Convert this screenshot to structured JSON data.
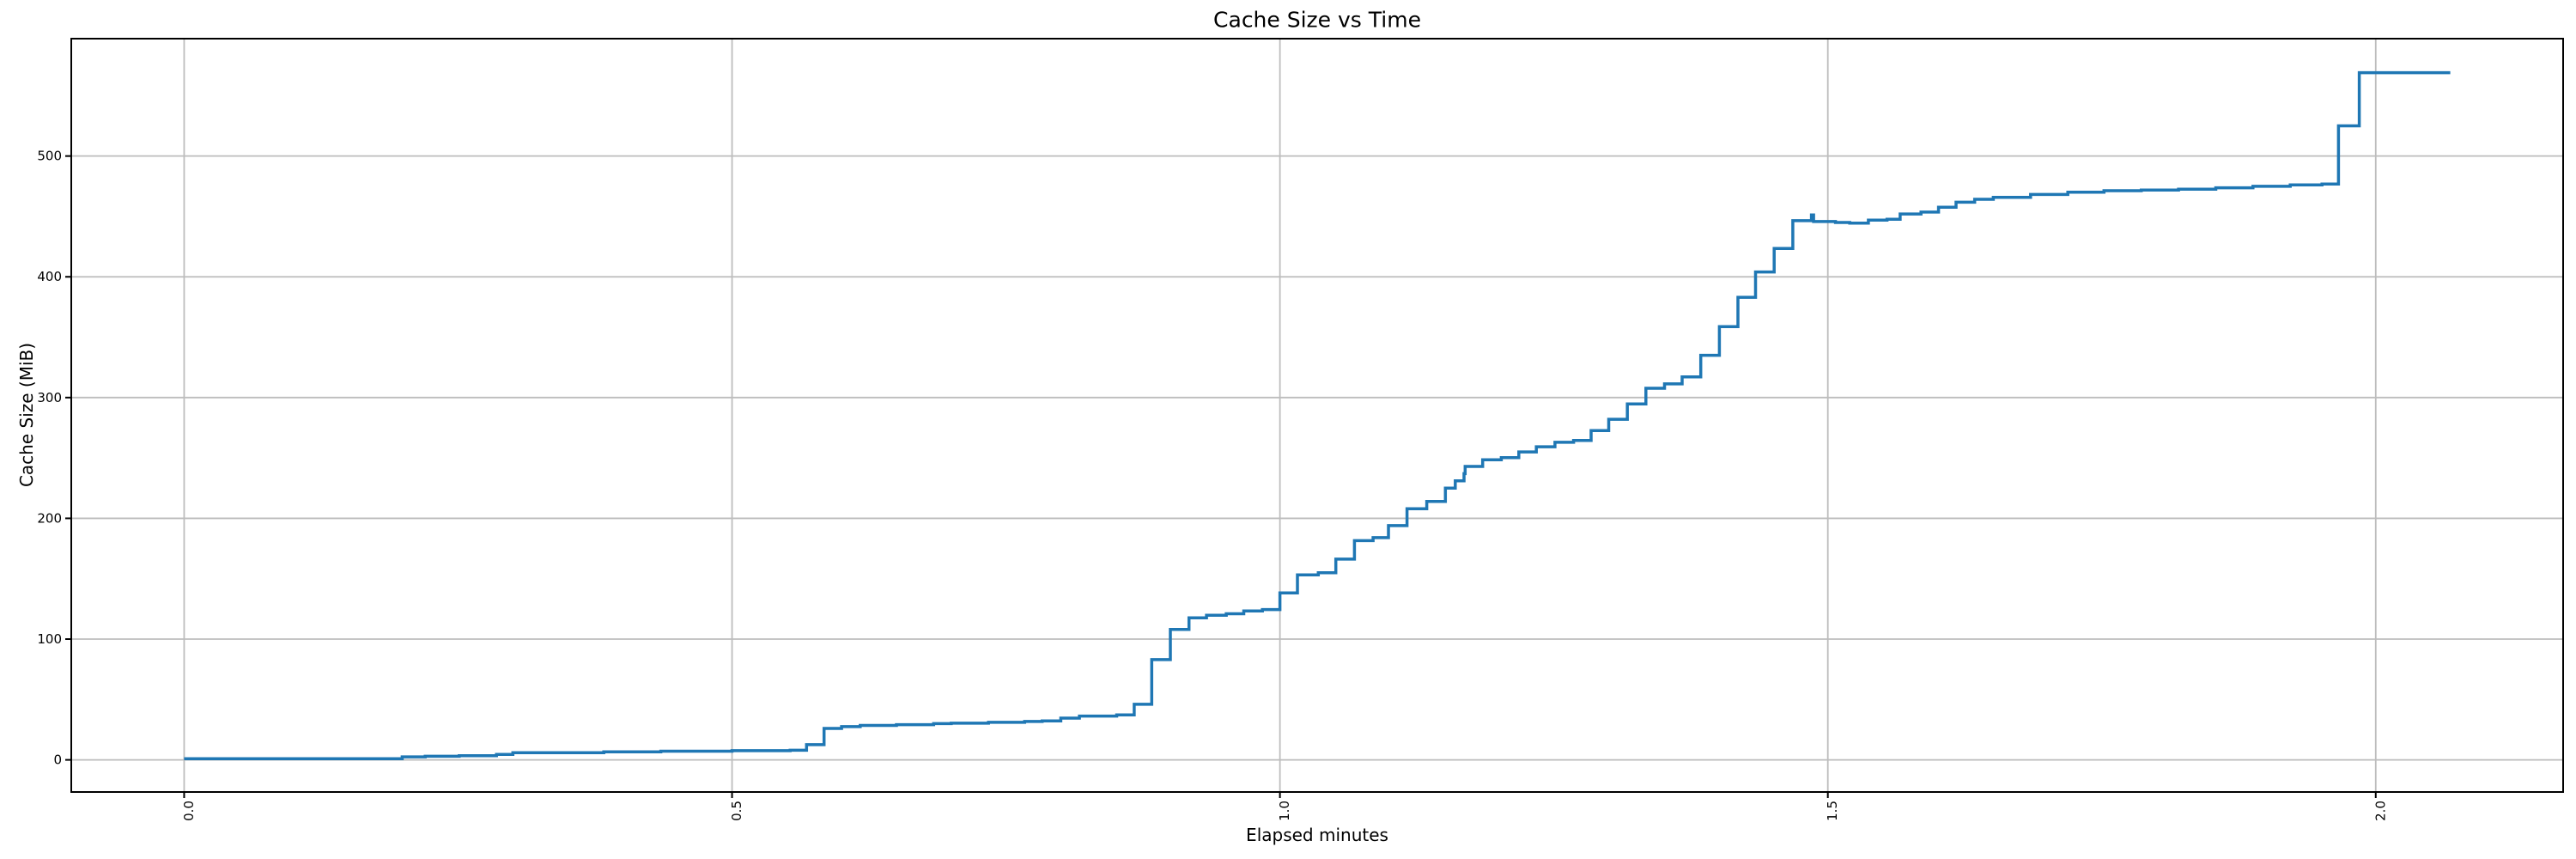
{
  "page": {
    "background": "#ffffff"
  },
  "chart_data": {
    "type": "line",
    "step_mode": "post",
    "title": "Cache Size vs Time",
    "xlabel": "Elapsed minutes",
    "ylabel": "Cache Size (MiB)",
    "x_ticks": [
      0.0,
      0.5,
      1.0,
      1.5,
      2.0
    ],
    "x_tick_labels": [
      "0.0",
      "0.5",
      "1.0",
      "1.5",
      "2.0"
    ],
    "x_tick_rotation_deg": 90,
    "y_ticks": [
      0,
      100,
      200,
      300,
      400,
      500
    ],
    "y_tick_labels": [
      "0",
      "100",
      "200",
      "300",
      "400",
      "500"
    ],
    "xlim": [
      -0.103,
      2.171
    ],
    "ylim": [
      -26.6,
      597.2
    ],
    "grid": true,
    "legend_position": "none",
    "line_color": "#1f77b4",
    "grid_color": "#bdbdbd",
    "spine_color": "#000000",
    "series": [
      {
        "name": "cache-size",
        "points": [
          [
            0.0,
            1.0
          ],
          [
            0.199,
            2.5
          ],
          [
            0.22,
            3.0
          ],
          [
            0.251,
            3.5
          ],
          [
            0.285,
            4.5
          ],
          [
            0.3,
            6.0
          ],
          [
            0.383,
            6.6
          ],
          [
            0.435,
            7.2
          ],
          [
            0.5,
            7.6
          ],
          [
            0.553,
            8.0
          ],
          [
            0.568,
            12.6
          ],
          [
            0.584,
            26.0
          ],
          [
            0.6,
            27.5
          ],
          [
            0.617,
            28.5
          ],
          [
            0.65,
            29.2
          ],
          [
            0.684,
            30.0
          ],
          [
            0.7,
            30.4
          ],
          [
            0.734,
            31.1
          ],
          [
            0.767,
            31.8
          ],
          [
            0.783,
            32.3
          ],
          [
            0.8,
            34.6
          ],
          [
            0.817,
            36.3
          ],
          [
            0.851,
            37.2
          ],
          [
            0.867,
            46.0
          ],
          [
            0.883,
            83.0
          ],
          [
            0.9,
            108.0
          ],
          [
            0.917,
            117.6
          ],
          [
            0.933,
            119.8
          ],
          [
            0.951,
            121.0
          ],
          [
            0.967,
            123.3
          ],
          [
            0.984,
            124.5
          ],
          [
            1.0,
            138.2
          ],
          [
            1.016,
            153.2
          ],
          [
            1.035,
            155.0
          ],
          [
            1.051,
            166.2
          ],
          [
            1.068,
            181.5
          ],
          [
            1.085,
            184.0
          ],
          [
            1.099,
            194.0
          ],
          [
            1.116,
            208.0
          ],
          [
            1.134,
            214.0
          ],
          [
            1.151,
            225.0
          ],
          [
            1.16,
            231.0
          ],
          [
            1.168,
            237.0
          ],
          [
            1.169,
            243.0
          ],
          [
            1.185,
            248.5
          ],
          [
            1.202,
            250.2
          ],
          [
            1.218,
            255.0
          ],
          [
            1.234,
            259.3
          ],
          [
            1.251,
            263.0
          ],
          [
            1.268,
            264.5
          ],
          [
            1.284,
            272.7
          ],
          [
            1.3,
            282.0
          ],
          [
            1.317,
            294.7
          ],
          [
            1.334,
            307.7
          ],
          [
            1.351,
            311.3
          ],
          [
            1.367,
            317.2
          ],
          [
            1.384,
            335.0
          ],
          [
            1.401,
            358.7
          ],
          [
            1.418,
            383.0
          ],
          [
            1.434,
            404.0
          ],
          [
            1.451,
            423.4
          ],
          [
            1.468,
            446.5
          ],
          [
            1.485,
            451.2
          ],
          [
            1.487,
            445.8
          ],
          [
            1.507,
            445.0
          ],
          [
            1.52,
            444.5
          ],
          [
            1.537,
            447.0
          ],
          [
            1.554,
            447.7
          ],
          [
            1.566,
            452.0
          ],
          [
            1.585,
            453.6
          ],
          [
            1.601,
            457.6
          ],
          [
            1.617,
            461.8
          ],
          [
            1.634,
            464.2
          ],
          [
            1.651,
            465.8
          ],
          [
            1.685,
            468.2
          ],
          [
            1.719,
            470.1
          ],
          [
            1.752,
            471.3
          ],
          [
            1.786,
            471.8
          ],
          [
            1.82,
            472.5
          ],
          [
            1.854,
            473.7
          ],
          [
            1.888,
            474.9
          ],
          [
            1.922,
            476.1
          ],
          [
            1.951,
            476.8
          ],
          [
            1.966,
            525.0
          ],
          [
            1.985,
            569.0
          ],
          [
            2.068,
            569.0
          ]
        ]
      }
    ]
  }
}
